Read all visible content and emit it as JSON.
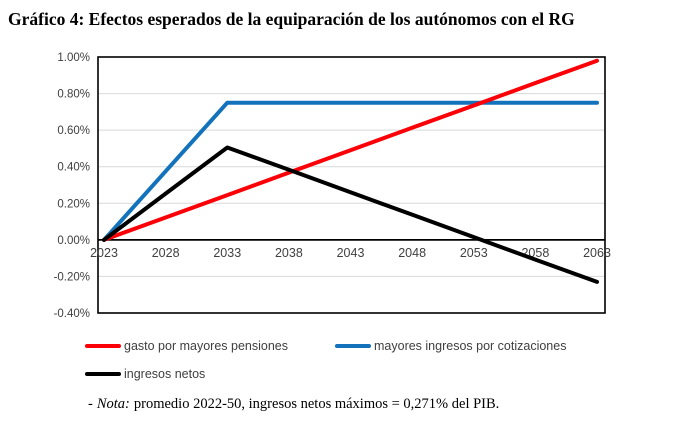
{
  "figure": {
    "title": "Gráfico 4: Efectos esperados de la equiparación de los autónomos con el RG"
  },
  "note": {
    "dash": "-",
    "label": "Nota:",
    "text": "promedio 2022-50, ingresos netos máximos = 0,271% del PIB."
  },
  "chart_data": {
    "type": "line",
    "title": "Gráfico 4: Efectos esperados de la equiparación de los autónomos con el RG",
    "x": [
      2023,
      2028,
      2033,
      2038,
      2043,
      2048,
      2053,
      2058,
      2063
    ],
    "x_tick_labels": [
      "2023",
      "2028",
      "2033",
      "2038",
      "2043",
      "2048",
      "2053",
      "2058",
      "2063"
    ],
    "series": [
      {
        "name": "gasto por mayores pensiones",
        "color": "#FB0007",
        "values": [
          0,
          0.122,
          0.245,
          0.368,
          0.49,
          0.613,
          0.735,
          0.858,
          0.98
        ]
      },
      {
        "name": "mayores ingresos por cotizaciones",
        "color": "#1272BB",
        "values": [
          0,
          0.375,
          0.75,
          0.75,
          0.75,
          0.75,
          0.75,
          0.75,
          0.75
        ]
      },
      {
        "name": "ingresos netos",
        "color": "#000000",
        "values": [
          0,
          0.253,
          0.505,
          0.383,
          0.26,
          0.138,
          0.015,
          -0.108,
          -0.23
        ]
      }
    ],
    "draw_order": [
      1,
      0,
      2
    ],
    "ylim": [
      -0.4,
      1.0
    ],
    "y_ticks": [
      1.0,
      0.8,
      0.6,
      0.4,
      0.2,
      0.0,
      -0.2,
      -0.4
    ],
    "y_tick_labels": [
      "1.00%",
      "0.80%",
      "0.60%",
      "0.40%",
      "0.20%",
      "0.00%",
      "-0.20%",
      "-0.40%"
    ],
    "ylabel": "",
    "xlabel": "",
    "units": "% del PIB",
    "grid": "horizontal",
    "gridline_color": "#D9D9D9",
    "axis_color": "#000000",
    "axis_text_color": "#3F3F3F",
    "legend_position": "bottom-left"
  }
}
